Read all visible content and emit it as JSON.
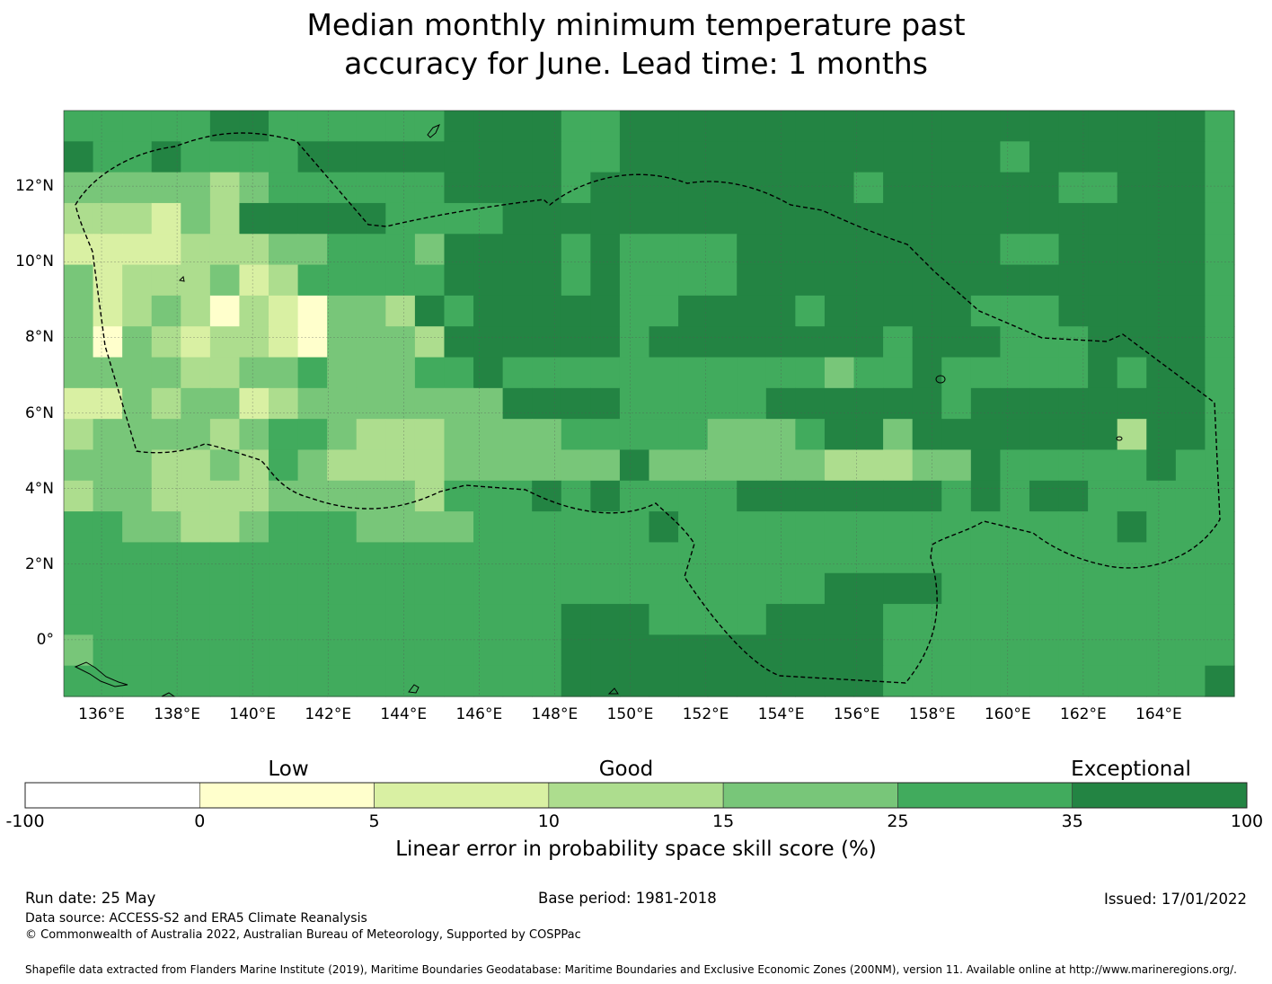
{
  "title": {
    "line1": "Median monthly minimum temperature past",
    "line2": "accuracy for June. Lead time: 1 months"
  },
  "map": {
    "lon_range": [
      135.0,
      166.0
    ],
    "lat_range": [
      -1.5,
      14.0
    ],
    "cell_size_deg": 0.833,
    "x_ticks": [
      "136°E",
      "138°E",
      "140°E",
      "142°E",
      "144°E",
      "146°E",
      "148°E",
      "150°E",
      "152°E",
      "154°E",
      "156°E",
      "158°E",
      "160°E",
      "162°E",
      "164°E"
    ],
    "x_tick_values": [
      136,
      138,
      140,
      142,
      144,
      146,
      148,
      150,
      152,
      154,
      156,
      158,
      160,
      162,
      164
    ],
    "y_ticks": [
      "12°N",
      "10°N",
      "8°N",
      "6°N",
      "4°N",
      "2°N",
      "0°"
    ],
    "y_tick_values": [
      12,
      10,
      8,
      6,
      4,
      2,
      0
    ],
    "boundary_label": "EEZ boundary (dashed)",
    "grid": [
      "5555566555555666655666666666666666666665",
      "6556555566666666655666666666666656666665",
      "4444434555555666656666666665666666556665",
      "3332436666655556666666666666666666666665",
      "2222333445554666656555566666666655666665",
      "4233342355555666656555566666666666666665",
      "4234313214436566666556666566666555666665",
      "4143233214443666666566666666566655566665",
      "4444334454445565555555555545565555565665",
      "2243442344444446666555556666665666666665",
      "3444434554333444455555444566466666663665",
      "4443343543333444444644444433344655555655",
      "3443333444443555656555566666665656655555",
      "5544334555444455555565555555555555556555",
      "5555555555555555555555555555555555555555",
      "5555555555555555555555555566665555555555",
      "5555555555555555566655556666555555555555",
      "4555555555555555566666666666555555555555",
      "5555555555555555566666666666555555555556"
    ]
  },
  "colorbar": {
    "category_labels": [
      "Low",
      "Good",
      "Exceptional"
    ],
    "boundaries": [
      "-100",
      "0",
      "5",
      "10",
      "15",
      "25",
      "35",
      "100"
    ],
    "colors": [
      "#ffffff",
      "#ffffcc",
      "#d9f0a3",
      "#addd8e",
      "#78c679",
      "#41ab5d",
      "#238443"
    ],
    "title": "Linear error in probability space skill score (%)"
  },
  "footer": {
    "run_date": "Run date: 25 May",
    "base_period": "Base period: 1981-2018",
    "issued": "Issued: 17/01/2022",
    "data_source": "Data source: ACCESS-S2 and ERA5 Climate Reanalysis",
    "copyright": "© Commonwealth of Australia 2022, Australian Bureau of Meteorology, Supported by COSPPac",
    "shapefile": "Shapefile data extracted from Flanders Marine Institute (2019), Maritime Boundaries Geodatabase: Maritime Boundaries and Exclusive Economic Zones (200NM), version 11. Available online at http://www.marineregions.org/."
  }
}
